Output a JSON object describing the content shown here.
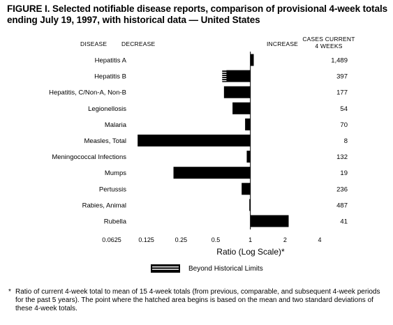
{
  "title": "FIGURE I. Selected notifiable disease reports, comparison of provisional 4-week totals ending July 19, 1997, with historical data — United States",
  "headers": {
    "disease": "DISEASE",
    "decrease": "DECREASE",
    "increase": "INCREASE",
    "cases_line1": "CASES CURRENT",
    "cases_line2": "4 WEEKS"
  },
  "legend": {
    "label": "Beyond Historical Limits"
  },
  "footnote": {
    "symbol": "*",
    "text": "Ratio of current 4-week total to mean of 15 4-week totals (from previous, comparable, and subsequent 4-week periods for the past 5 years). The point where the hatched area begins is based on the mean and two standard deviations of these 4-week totals."
  },
  "chart_data": {
    "type": "bar",
    "orientation": "horizontal",
    "xlabel": "Ratio (Log Scale)*",
    "xscale": "log2",
    "xlim": [
      0.0625,
      4
    ],
    "xticks": [
      "0.0625",
      "0.125",
      "0.25",
      "0.5",
      "1",
      "2",
      "4"
    ],
    "tick_values": [
      0.0625,
      0.125,
      0.25,
      0.5,
      1,
      2,
      4
    ],
    "baseline": 1,
    "colors": {
      "bar": "#000000",
      "hatch": "#ffffff"
    },
    "categories": [
      "Hepatitis A",
      "Hepatitis B",
      "Hepatitis, C/Non-A, Non-B",
      "Legionellosis",
      "Malaria",
      "Measles, Total",
      "Meningococcal Infections",
      "Mumps",
      "Pertussis",
      "Rabies, Animal",
      "Rubella"
    ],
    "values": [
      1.07,
      0.57,
      0.59,
      0.7,
      0.9,
      0.105,
      0.93,
      0.215,
      0.84,
      0.98,
      2.15
    ],
    "cases": [
      "1,489",
      "397",
      "177",
      "54",
      "70",
      "8",
      "132",
      "19",
      "236",
      "487",
      "41"
    ],
    "beyond_limits": [
      null,
      0.62,
      null,
      null,
      null,
      null,
      null,
      null,
      null,
      null,
      null
    ]
  }
}
